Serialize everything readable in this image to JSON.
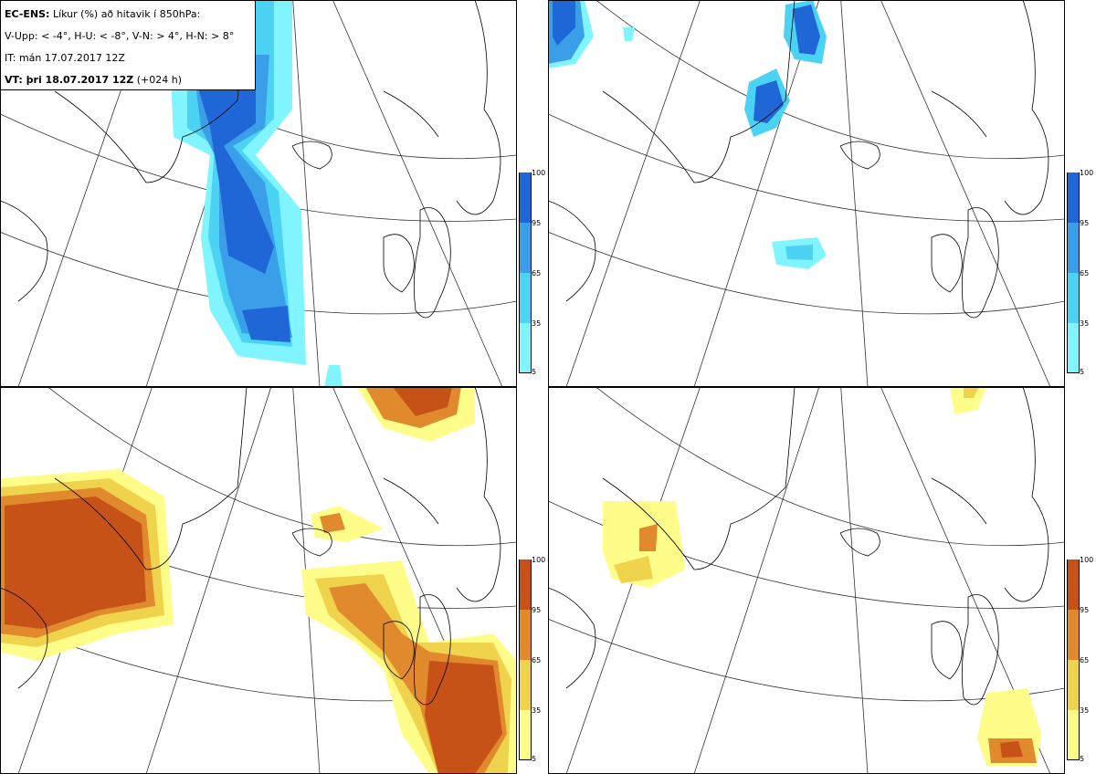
{
  "legend": {
    "line1_bold": "EC-ENS:",
    "line1_rest": " Líkur (%) að hitavik í 850hPa:",
    "line2": "V-Upp: < -4°, H-U: < -8°, V-N: > 4°, H-N: > 8°",
    "line3": "IT: mán 17.07.2017 12Z",
    "line4_bold": "VT: þri 18.07.2017 12Z",
    "line4_rest": " (+024 h)"
  },
  "colorbar_ticks": [
    "100",
    "95",
    "65",
    "35",
    "5"
  ],
  "colors": {
    "cold": [
      "#80f4ff",
      "#4cd3f4",
      "#3a9fe8",
      "#1f66d6"
    ],
    "warm": [
      "#fffd8a",
      "#f0d34c",
      "#e08a2d",
      "#c65218"
    ],
    "coast": "#000000",
    "grid": "#333333"
  },
  "panels": [
    {
      "id": "top-left",
      "variable": "V-Upp",
      "scale": "cold"
    },
    {
      "id": "top-right",
      "variable": "H-U",
      "scale": "cold"
    },
    {
      "id": "bottom-left",
      "variable": "V-N",
      "scale": "warm"
    },
    {
      "id": "bottom-right",
      "variable": "H-N",
      "scale": "warm"
    }
  ]
}
